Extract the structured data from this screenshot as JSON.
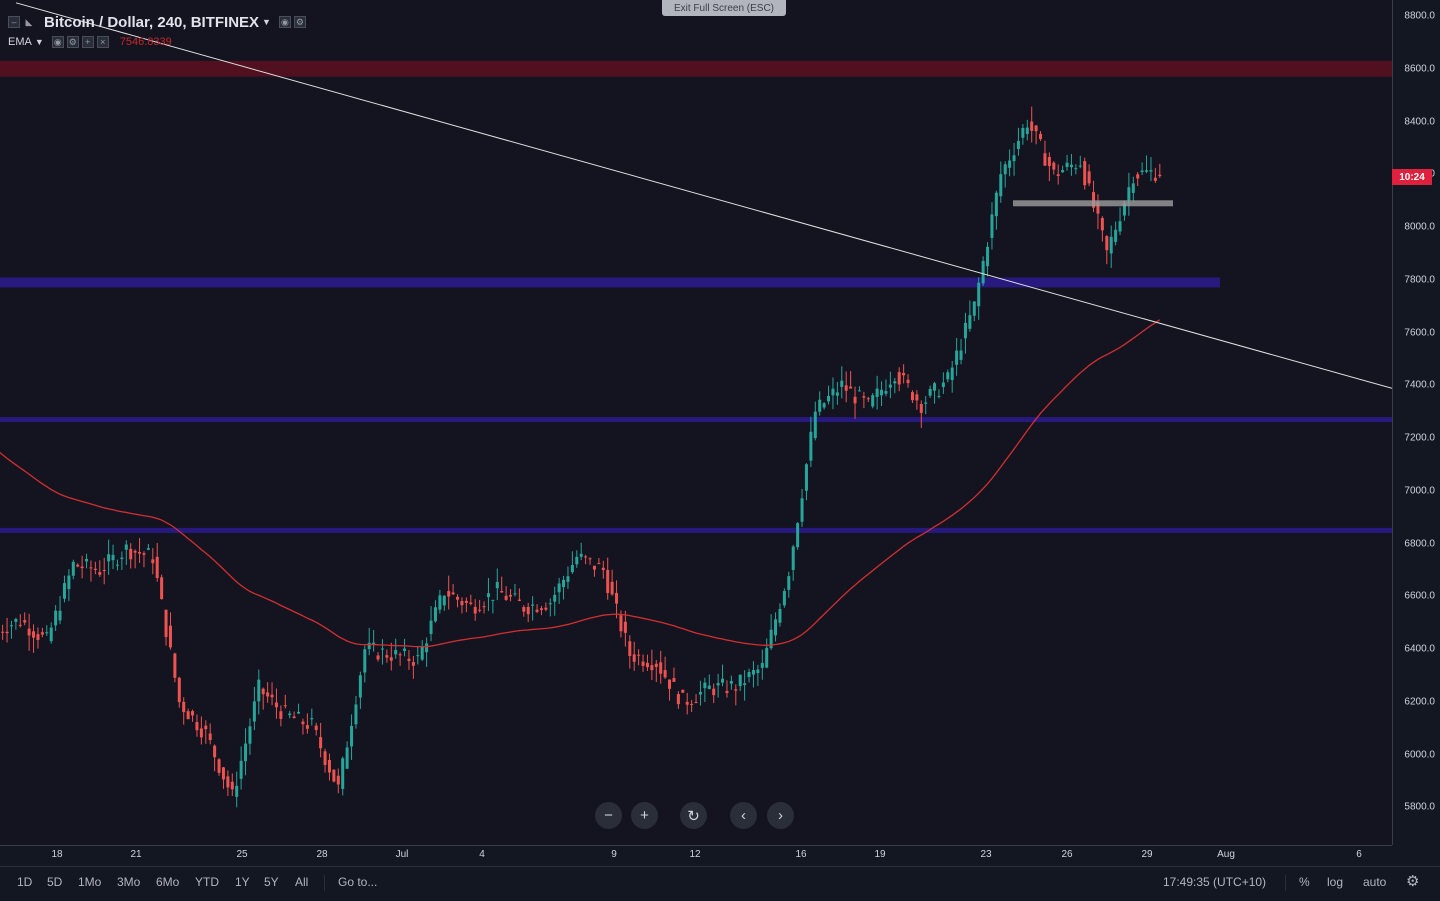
{
  "legend": {
    "symbol": "Bitcoin / Dollar, 240, BITFINEX",
    "indicator": "EMA",
    "indicator_value": "7546.8339"
  },
  "exit_fullscreen": "Exit Full Screen (ESC)",
  "price_scale": {
    "labels": [
      "8800.0",
      "8600.0",
      "8400.0",
      "8200.0",
      "8000.0",
      "7800.0",
      "7600.0",
      "7400.0",
      "7200.0",
      "7000.0",
      "6800.0",
      "6600.0",
      "6400.0",
      "6200.0",
      "6000.0",
      "5800.0"
    ],
    "countdown": "10:24"
  },
  "time_scale": {
    "labels": [
      "18",
      "21",
      "25",
      "28",
      "Jul",
      "4",
      "9",
      "12",
      "16",
      "19",
      "23",
      "26",
      "29",
      "Aug",
      "6"
    ]
  },
  "nav": {
    "zoom_out": "−",
    "zoom_in": "+",
    "reset": "↻",
    "scroll_left": "‹",
    "scroll_right": "›"
  },
  "bottom_bar": {
    "ranges": [
      "1D",
      "5D",
      "1Mo",
      "3Mo",
      "6Mo",
      "YTD",
      "1Y",
      "5Y",
      "All"
    ],
    "goto": "Go to...",
    "clock": "17:49:35 (UTC+10)",
    "percent": "%",
    "log": "log",
    "auto": "auto"
  },
  "colors": {
    "up": "#26a69a",
    "down": "#ef5350",
    "ema": "#d32f2f",
    "resistance_zone": "#5a0f1e",
    "support_lines": "#2a1a8a",
    "trendline": "#e0e0e0"
  },
  "chart_data": {
    "type": "candlestick",
    "title": "Bitcoin / Dollar, 240, BITFINEX",
    "timeframe": "240",
    "ylim": [
      5650,
      8830
    ],
    "overlays": {
      "ema_last": 7546.8339,
      "zones": [
        {
          "type": "resistance",
          "low": 8570,
          "high": 8630
        },
        {
          "type": "support",
          "level": 7790
        },
        {
          "type": "support",
          "level": 7270
        },
        {
          "type": "support",
          "level": 6850
        }
      ],
      "trendline": {
        "from": {
          "date": "Jun 16",
          "price": 8850
        },
        "to": {
          "date": "Aug 1",
          "price": 7400
        }
      },
      "horizontal_level": 8090
    },
    "price_path": [
      {
        "date": "Jun 16",
        "close": 6470
      },
      {
        "date": "Jun 17",
        "close": 6510
      },
      {
        "date": "Jun 18",
        "close": 6430
      },
      {
        "date": "Jun 19",
        "close": 6720
      },
      {
        "date": "Jun 20",
        "close": 6700
      },
      {
        "date": "Jun 21",
        "close": 6780
      },
      {
        "date": "Jun 22",
        "close": 6750
      },
      {
        "date": "Jun 23",
        "close": 6200
      },
      {
        "date": "Jun 24",
        "close": 6080
      },
      {
        "date": "Jun 25",
        "close": 5840
      },
      {
        "date": "Jun 26",
        "close": 6250
      },
      {
        "date": "Jun 27",
        "close": 6150
      },
      {
        "date": "Jun 28",
        "close": 6110
      },
      {
        "date": "Jun 29",
        "close": 5870
      },
      {
        "date": "Jun 30",
        "close": 6400
      },
      {
        "date": "Jul 1",
        "close": 6380
      },
      {
        "date": "Jul 2",
        "close": 6360
      },
      {
        "date": "Jul 3",
        "close": 6620
      },
      {
        "date": "Jul 4",
        "close": 6560
      },
      {
        "date": "Jul 5",
        "close": 6620
      },
      {
        "date": "Jul 6",
        "close": 6560
      },
      {
        "date": "Jul 7",
        "close": 6580
      },
      {
        "date": "Jul 8",
        "close": 6750
      },
      {
        "date": "Jul 9",
        "close": 6700
      },
      {
        "date": "Jul 10",
        "close": 6380
      },
      {
        "date": "Jul 11",
        "close": 6350
      },
      {
        "date": "Jul 12",
        "close": 6200
      },
      {
        "date": "Jul 13",
        "close": 6250
      },
      {
        "date": "Jul 14",
        "close": 6260
      },
      {
        "date": "Jul 15",
        "close": 6330
      },
      {
        "date": "Jul 16",
        "close": 6700
      },
      {
        "date": "Jul 17",
        "close": 7300
      },
      {
        "date": "Jul 18",
        "close": 7400
      },
      {
        "date": "Jul 19",
        "close": 7320
      },
      {
        "date": "Jul 20",
        "close": 7450
      },
      {
        "date": "Jul 21",
        "close": 7330
      },
      {
        "date": "Jul 22",
        "close": 7420
      },
      {
        "date": "Jul 23",
        "close": 7700
      },
      {
        "date": "Jul 24",
        "close": 8200
      },
      {
        "date": "Jul 25",
        "close": 8400
      },
      {
        "date": "Jul 26",
        "close": 8200
      },
      {
        "date": "Jul 27",
        "close": 8250
      },
      {
        "date": "Jul 28",
        "close": 7900
      },
      {
        "date": "Jul 29",
        "close": 8200
      },
      {
        "date": "Jul 30",
        "close": 8210
      }
    ]
  }
}
